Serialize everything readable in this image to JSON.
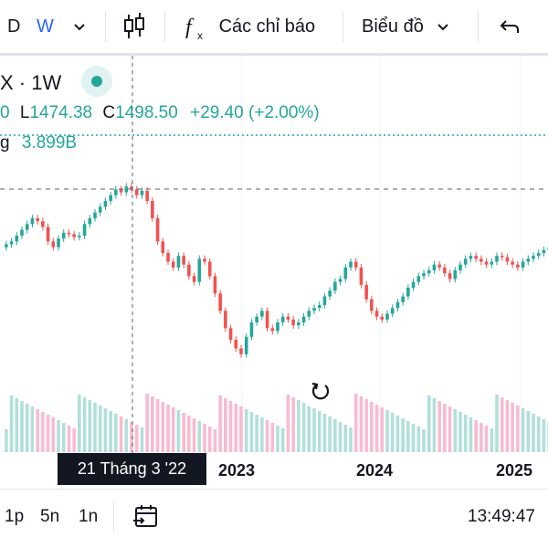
{
  "toolbar": {
    "interval_d": "D",
    "interval_w": "W",
    "indicators_label": "Các chỉ báo",
    "chart_type_label": "Biểu đồ"
  },
  "legend": {
    "symbol_interval": "X · 1W",
    "open_tail": "0",
    "low_label": "L",
    "low_value": "1474.38",
    "close_label": "C",
    "close_value": "1498.50",
    "change": "+29.40 (+2.00%)",
    "volume_label_tail": "g",
    "volume_value": "3.899B"
  },
  "crosshair": {
    "date_tooltip": "21 Tháng 3 '22"
  },
  "x_axis": {
    "labels": [
      "2023",
      "2024",
      "2025"
    ]
  },
  "bottom_bar": {
    "ranges": [
      "1p",
      "5n",
      "1n"
    ],
    "clock": "13:49:47"
  },
  "colors": {
    "up": "#26a69a",
    "down": "#ef5350",
    "up_volume": "#b2dfdb",
    "down_volume": "#f8bbd0"
  },
  "chart_data": {
    "type": "candlestick",
    "x_axis_labels": [
      "2023",
      "2024",
      "2025"
    ],
    "price_series": [
      1310,
      1320,
      1340,
      1360,
      1380,
      1400,
      1390,
      1370,
      1320,
      1300,
      1330,
      1350,
      1345,
      1335,
      1340,
      1380,
      1400,
      1420,
      1440,
      1460,
      1480,
      1500,
      1490,
      1510,
      1500,
      1480,
      1495,
      1460,
      1400,
      1320,
      1280,
      1250,
      1230,
      1270,
      1240,
      1200,
      1180,
      1260,
      1250,
      1200,
      1140,
      1080,
      1020,
      980,
      950,
      930,
      990,
      1040,
      1060,
      1080,
      1020,
      1010,
      1040,
      1060,
      1050,
      1030,
      1040,
      1060,
      1080,
      1090,
      1100,
      1130,
      1150,
      1180,
      1190,
      1230,
      1250,
      1230,
      1170,
      1120,
      1080,
      1060,
      1050,
      1070,
      1090,
      1110,
      1130,
      1160,
      1180,
      1200,
      1210,
      1220,
      1240,
      1230,
      1210,
      1190,
      1220,
      1240,
      1260,
      1270,
      1260,
      1250,
      1240,
      1250,
      1270,
      1265,
      1250,
      1240,
      1230,
      1250,
      1260,
      1270,
      1280,
      1290,
      1300
    ]
  }
}
